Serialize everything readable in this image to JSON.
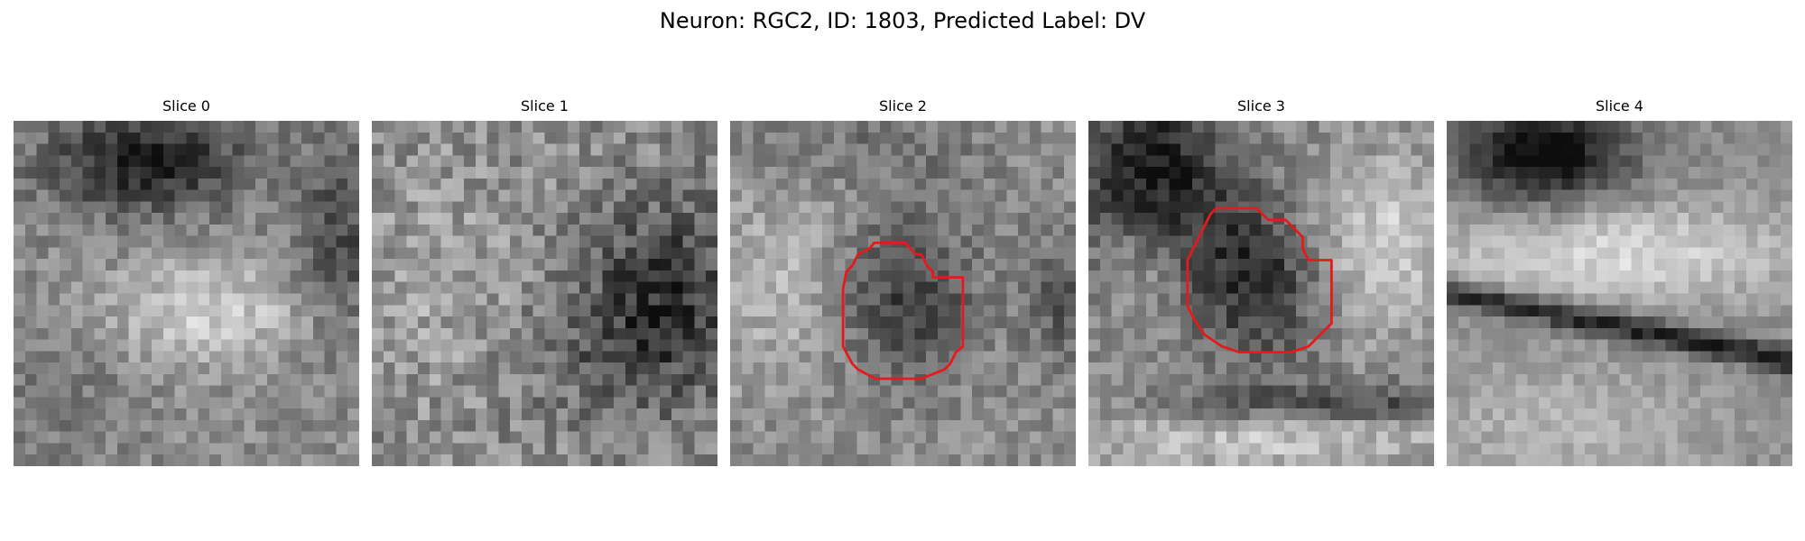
{
  "figure": {
    "title": "Neuron: RGC2, ID: 1803, Predicted Label: DV"
  },
  "slices": [
    {
      "title": "Slice 0",
      "contour": false
    },
    {
      "title": "Slice 1",
      "contour": false
    },
    {
      "title": "Slice 2",
      "contour": true
    },
    {
      "title": "Slice 3",
      "contour": true
    },
    {
      "title": "Slice 4",
      "contour": false
    }
  ],
  "colors": {
    "contour": "#e41a1c",
    "background": "#ffffff"
  }
}
